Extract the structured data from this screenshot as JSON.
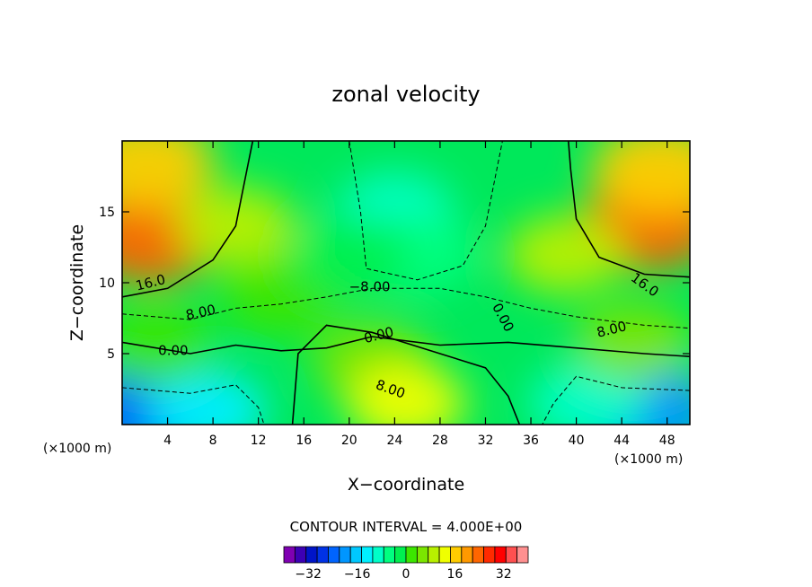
{
  "chart_data": {
    "type": "heatmap",
    "title": "zonal velocity",
    "xlabel": "X−coordinate",
    "ylabel": "Z−coordinate",
    "x_unit": "(×1000 m)",
    "z_unit": "(×1000 m)",
    "xlim": [
      0,
      50
    ],
    "ylim": [
      0,
      20
    ],
    "x_ticks": [
      4,
      8,
      12,
      16,
      20,
      24,
      28,
      32,
      36,
      40,
      44,
      48
    ],
    "y_ticks": [
      5,
      10,
      15
    ],
    "contour_interval_label": "CONTOUR INTERVAL = 4.000E+00",
    "contour_interval": 4,
    "contour_labels": [
      {
        "text": "16.0",
        "x": 2.6,
        "z": 9.7,
        "angle": -14
      },
      {
        "text": "8.00",
        "x": 7.0,
        "z": 7.6,
        "angle": -12
      },
      {
        "text": "0.00",
        "x": 4.5,
        "z": 4.9,
        "angle": 0
      },
      {
        "text": "−8.00",
        "x": 21.8,
        "z": 9.4,
        "angle": 0
      },
      {
        "text": "0.00",
        "x": 22.7,
        "z": 6.0,
        "angle": -14
      },
      {
        "text": "8.00",
        "x": 23.5,
        "z": 2.2,
        "angle": 20
      },
      {
        "text": "0.00",
        "x": 33.2,
        "z": 7.4,
        "angle": 62
      },
      {
        "text": "16.0",
        "x": 45.8,
        "z": 9.6,
        "angle": 36
      },
      {
        "text": "8.00",
        "x": 43.2,
        "z": 6.4,
        "angle": -14
      }
    ],
    "colorbar": {
      "levels": [
        -36,
        -32,
        -28,
        -24,
        -20,
        -16,
        -12,
        -8,
        -4,
        0,
        4,
        8,
        12,
        16,
        20,
        24,
        28,
        32,
        36
      ],
      "colors": [
        "#7f00b2",
        "#3c00b4",
        "#0014c8",
        "#0032e6",
        "#0064ff",
        "#0096ff",
        "#00c8ff",
        "#00f0ff",
        "#00ffc8",
        "#00ff80",
        "#00f050",
        "#3ce600",
        "#7be600",
        "#b8f000",
        "#f0ff00",
        "#ffcc00",
        "#ff9900",
        "#ff6600",
        "#ff2a00",
        "#ff0000",
        "#ff5050",
        "#ff9090"
      ],
      "tick_labels": [
        "−32",
        "−16",
        "0",
        "16",
        "32"
      ],
      "tick_values": [
        -32,
        -16,
        0,
        16,
        32
      ]
    },
    "field_points": [
      {
        "x": 2.5,
        "z": 13.2,
        "u": 26
      },
      {
        "x": 46.5,
        "z": 14.2,
        "u": 26
      },
      {
        "x": 2.0,
        "z": 18.5,
        "u": 18
      },
      {
        "x": 47.5,
        "z": 18.0,
        "u": 18
      },
      {
        "x": 10.0,
        "z": 14.0,
        "u": 8
      },
      {
        "x": 39.0,
        "z": 12.0,
        "u": 10
      },
      {
        "x": 14.0,
        "z": 9.0,
        "u": 2
      },
      {
        "x": 24.0,
        "z": 15.0,
        "u": -11
      },
      {
        "x": 26.0,
        "z": 12.0,
        "u": -8
      },
      {
        "x": 20.0,
        "z": 12.0,
        "u": -4
      },
      {
        "x": 22.0,
        "z": 4.5,
        "u": 4
      },
      {
        "x": 25.0,
        "z": 1.5,
        "u": 12
      },
      {
        "x": 2.0,
        "z": 0.8,
        "u": -26
      },
      {
        "x": 46.0,
        "z": 0.8,
        "u": -22
      },
      {
        "x": 41.0,
        "z": 1.5,
        "u": -12
      },
      {
        "x": 7.5,
        "z": 1.0,
        "u": -15
      },
      {
        "x": 3.0,
        "z": 5.5,
        "u": 0
      },
      {
        "x": 45.0,
        "z": 5.8,
        "u": 5
      }
    ]
  }
}
